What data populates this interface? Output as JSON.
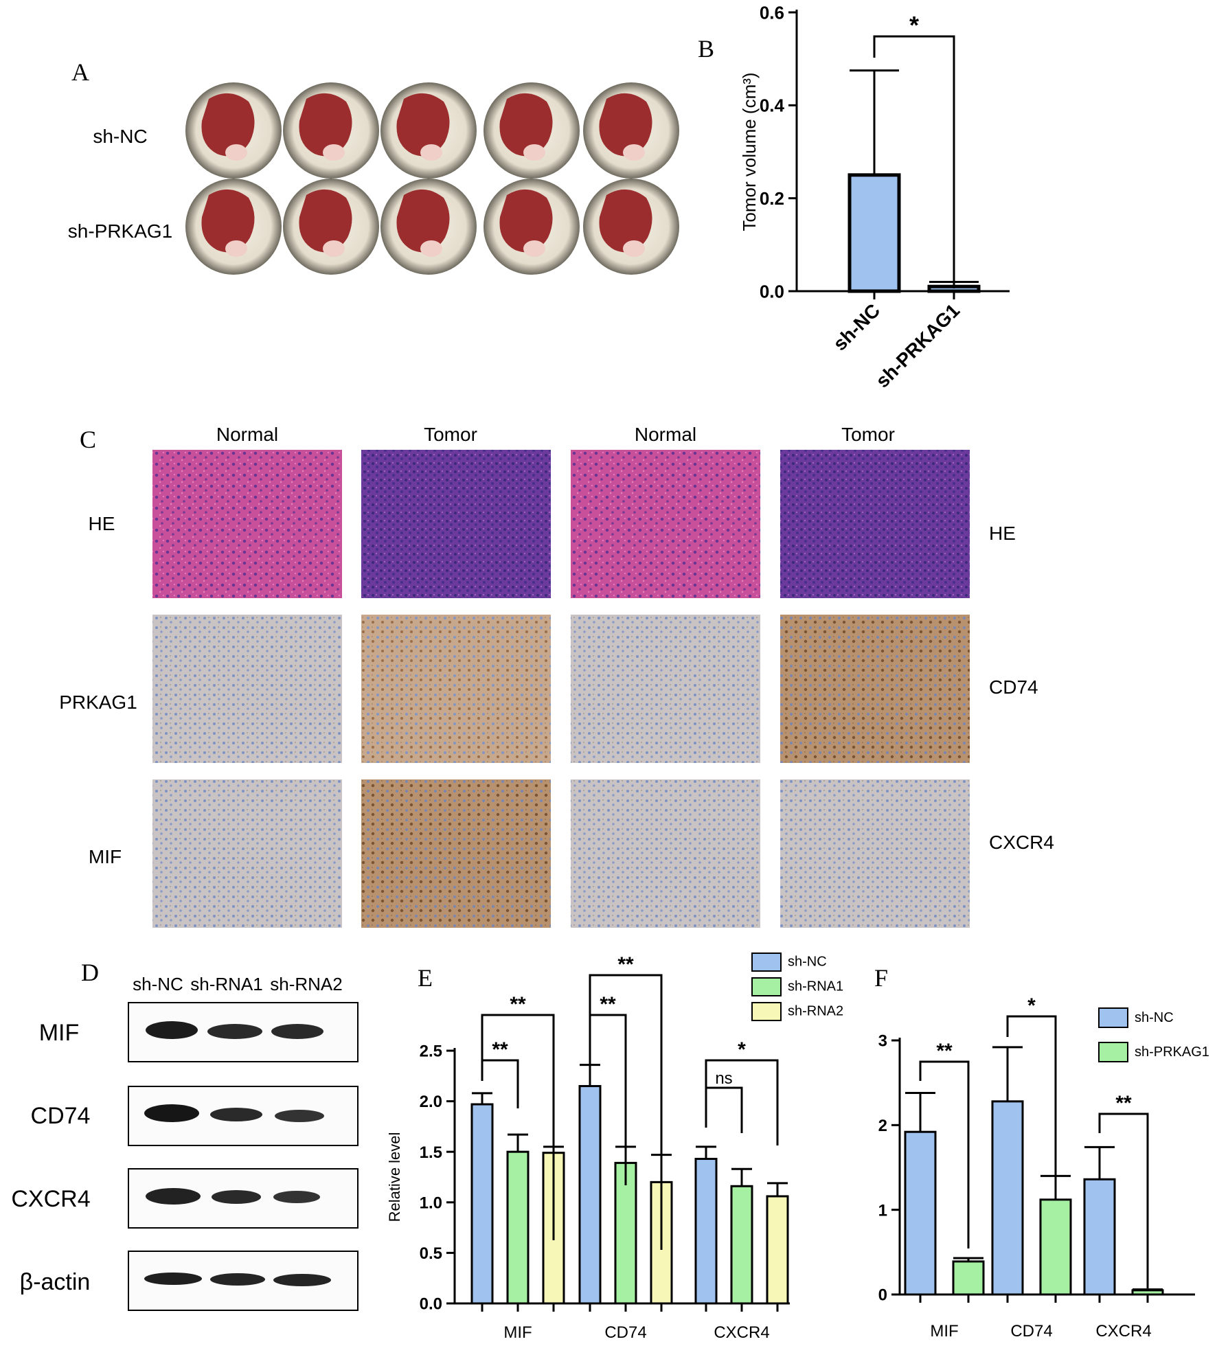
{
  "panel_letters": {
    "a": "A",
    "b": "B",
    "c": "C",
    "d": "D",
    "e": "E",
    "f": "F"
  },
  "colors": {
    "blue": "#9fc3ee",
    "green": "#a6f0a4",
    "yellow": "#f7f8b8",
    "axis": "#000000"
  },
  "panel_a": {
    "rows": [
      {
        "label": "sh-NC"
      },
      {
        "label": "sh-PRKAG1"
      }
    ]
  },
  "panel_c": {
    "column_labels": [
      "Normal",
      "Tomor",
      "Normal",
      "Tomor"
    ],
    "left_row_labels": [
      "HE",
      "PRKAG1",
      "MIF"
    ],
    "right_row_labels": [
      "HE",
      "CD74",
      "CXCR4"
    ]
  },
  "panel_d": {
    "lane_labels": [
      "sh-NC",
      "sh-RNA1",
      "sh-RNA2"
    ],
    "blots": [
      "MIF",
      "CD74",
      "CXCR4",
      "β-actin"
    ]
  },
  "chart_data": [
    {
      "panel": "B",
      "type": "bar",
      "categories": [
        "sh-NC",
        "sh-PRKAG1"
      ],
      "values": [
        0.25,
        0.01
      ],
      "errors": [
        0.225,
        0.01
      ],
      "ylabel": "Tomor volume (cm³)",
      "ylim": [
        0,
        0.6
      ],
      "yticks": [
        "0.0",
        "0.2",
        "0.4",
        "0.6"
      ],
      "significance": [
        {
          "from": 0,
          "to": 1,
          "label": "*"
        }
      ]
    },
    {
      "panel": "E",
      "type": "bar",
      "categories": [
        "MIF",
        "CD74",
        "CXCR4"
      ],
      "series": [
        {
          "name": "sh-NC",
          "values": [
            1.97,
            2.15,
            1.43
          ],
          "errors": [
            0.11,
            0.21,
            0.12
          ]
        },
        {
          "name": "sh-RNA1",
          "values": [
            1.5,
            1.39,
            1.16
          ],
          "errors": [
            0.17,
            0.16,
            0.17
          ]
        },
        {
          "name": "sh-RNA2",
          "values": [
            1.49,
            1.2,
            1.06
          ],
          "errors": [
            0.06,
            0.27,
            0.13
          ]
        }
      ],
      "ylabel": "Relative  level",
      "ylim": [
        0,
        2.5
      ],
      "yticks": [
        "0.0",
        "0.5",
        "1.0",
        "1.5",
        "2.0",
        "2.5"
      ],
      "legend": "top-right",
      "significance": [
        {
          "category": 0,
          "from": 0,
          "to": 1,
          "label": "**"
        },
        {
          "category": 0,
          "from": 0,
          "to": 2,
          "label": "**"
        },
        {
          "category": 1,
          "from": 0,
          "to": 1,
          "label": "**"
        },
        {
          "category": 1,
          "from": 0,
          "to": 2,
          "label": "**"
        },
        {
          "category": 2,
          "from": 0,
          "to": 1,
          "label": "ns"
        },
        {
          "category": 2,
          "from": 0,
          "to": 2,
          "label": "*"
        }
      ]
    },
    {
      "panel": "F",
      "type": "bar",
      "categories": [
        "MIF",
        "CD74",
        "CXCR4"
      ],
      "series": [
        {
          "name": "sh-NC",
          "values": [
            1.92,
            2.28,
            1.36
          ],
          "errors": [
            0.46,
            0.64,
            0.38
          ]
        },
        {
          "name": "sh-PRKAG1",
          "values": [
            0.39,
            1.12,
            0.05
          ],
          "errors": [
            0.04,
            0.28,
            0.01
          ]
        }
      ],
      "ylim": [
        0,
        3
      ],
      "yticks": [
        "0",
        "1",
        "2",
        "3"
      ],
      "legend": "top-right",
      "significance": [
        {
          "category": 0,
          "from": 0,
          "to": 1,
          "label": "**"
        },
        {
          "category": 1,
          "from": 0,
          "to": 1,
          "label": "*"
        },
        {
          "category": 2,
          "from": 0,
          "to": 1,
          "label": "**"
        }
      ]
    }
  ]
}
